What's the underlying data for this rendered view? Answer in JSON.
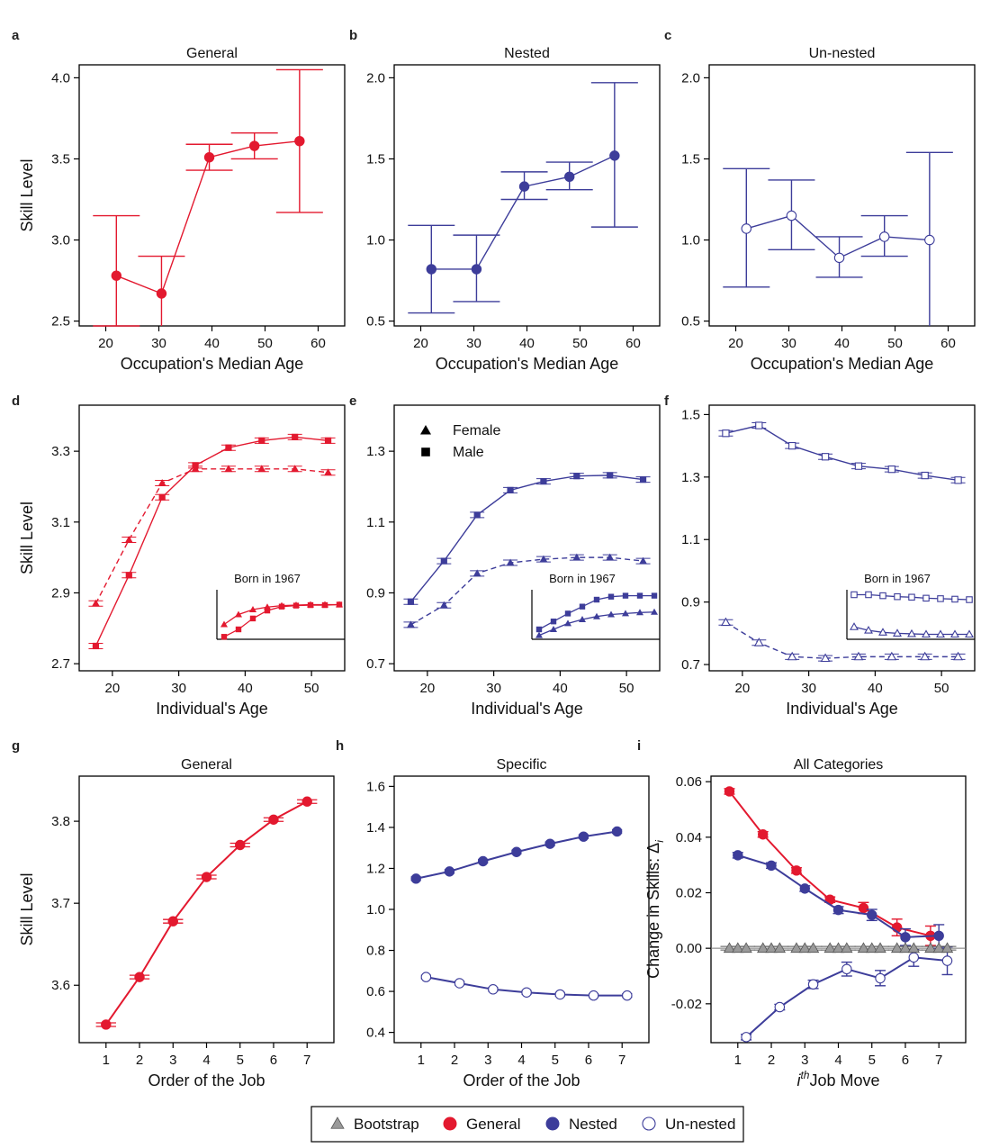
{
  "figure": {
    "legend": {
      "entries": [
        {
          "label": "Bootstrap",
          "symbol": "bootstrap"
        },
        {
          "label": "General",
          "symbol": "general"
        },
        {
          "label": "Nested",
          "symbol": "nested"
        },
        {
          "label": "Un-nested",
          "symbol": "unnested"
        }
      ]
    },
    "colors": {
      "general": "#e3192f",
      "nested": "#3d3d9a",
      "unnested": "#3d3d9a",
      "bootstrap": "#9a9a9a"
    }
  },
  "chart_data": [
    {
      "id": "a",
      "letter": "a",
      "type": "line",
      "title": "General",
      "xlabel": "Occupation's Median Age",
      "ylabel": "Skill Level",
      "xlim": [
        15,
        65
      ],
      "ylim": [
        2.47,
        4.08
      ],
      "xticks": [
        20,
        30,
        40,
        50,
        60
      ],
      "yticks": [
        2.5,
        3.0,
        3.5,
        4.0
      ],
      "ytick_labels": [
        "2.5",
        "3.0",
        "3.5",
        "4.0"
      ],
      "series": [
        {
          "name": "General",
          "marker": "circle-filled",
          "color": "#e3192f",
          "dash": false,
          "x": [
            22,
            30.5,
            39.5,
            48,
            56.5
          ],
          "y": [
            2.78,
            2.67,
            3.51,
            3.58,
            3.61
          ],
          "lo": [
            2.47,
            2.46,
            3.43,
            3.5,
            3.17
          ],
          "hi": [
            3.15,
            2.9,
            3.59,
            3.66,
            4.05
          ]
        }
      ]
    },
    {
      "id": "b",
      "letter": "b",
      "type": "line",
      "title": "Nested",
      "xlabel": "Occupation's Median Age",
      "ylabel": "",
      "xlim": [
        15,
        65
      ],
      "ylim": [
        0.47,
        2.08
      ],
      "xticks": [
        20,
        30,
        40,
        50,
        60
      ],
      "yticks": [
        0.5,
        1.0,
        1.5,
        2.0
      ],
      "ytick_labels": [
        "0.5",
        "1.0",
        "1.5",
        "2.0"
      ],
      "series": [
        {
          "name": "Nested",
          "marker": "circle-filled",
          "color": "#3d3d9a",
          "dash": false,
          "x": [
            22,
            30.5,
            39.5,
            48,
            56.5
          ],
          "y": [
            0.82,
            0.82,
            1.33,
            1.39,
            1.52
          ],
          "lo": [
            0.55,
            0.62,
            1.25,
            1.31,
            1.08
          ],
          "hi": [
            1.09,
            1.03,
            1.42,
            1.48,
            1.97
          ]
        }
      ]
    },
    {
      "id": "c",
      "letter": "c",
      "type": "line",
      "title": "Un-nested",
      "xlabel": "Occupation's Median Age",
      "ylabel": "",
      "xlim": [
        15,
        65
      ],
      "ylim": [
        0.47,
        2.08
      ],
      "xticks": [
        20,
        30,
        40,
        50,
        60
      ],
      "yticks": [
        0.5,
        1.0,
        1.5,
        2.0
      ],
      "ytick_labels": [
        "0.5",
        "1.0",
        "1.5",
        "2.0"
      ],
      "series": [
        {
          "name": "Un-nested",
          "marker": "circle-open",
          "color": "#3d3d9a",
          "dash": false,
          "x": [
            22,
            30.5,
            39.5,
            48,
            56.5
          ],
          "y": [
            1.07,
            1.15,
            0.89,
            1.02,
            1.0
          ],
          "lo": [
            0.71,
            0.94,
            0.77,
            0.9,
            0.46
          ],
          "hi": [
            1.44,
            1.37,
            1.02,
            1.15,
            1.54
          ]
        }
      ]
    },
    {
      "id": "d",
      "letter": "d",
      "type": "line",
      "title": "",
      "xlabel": "Individual's Age",
      "ylabel": "Skill Level",
      "xlim": [
        15,
        55
      ],
      "ylim": [
        2.68,
        3.43
      ],
      "xticks": [
        20,
        30,
        40,
        50
      ],
      "yticks": [
        2.7,
        2.9,
        3.1,
        3.3
      ],
      "ytick_labels": [
        "2.7",
        "2.9",
        "3.1",
        "3.3"
      ],
      "series": [
        {
          "name": "Male",
          "marker": "square-filled",
          "color": "#e3192f",
          "dash": false,
          "x": [
            17.5,
            22.5,
            27.5,
            32.5,
            37.5,
            42.5,
            47.5,
            52.5
          ],
          "y": [
            2.75,
            2.95,
            3.17,
            3.26,
            3.31,
            3.33,
            3.34,
            3.33
          ]
        },
        {
          "name": "Female",
          "marker": "triangle-filled",
          "color": "#e3192f",
          "dash": true,
          "x": [
            17.5,
            22.5,
            27.5,
            32.5,
            37.5,
            42.5,
            47.5,
            52.5
          ],
          "y": [
            2.87,
            3.05,
            3.21,
            3.25,
            3.25,
            3.25,
            3.25,
            3.24
          ]
        }
      ],
      "inset": {
        "title": "Born in 1967",
        "series": [
          {
            "name": "Male",
            "marker": "square-filled",
            "dash": false,
            "y": [
              0.05,
              0.2,
              0.42,
              0.58,
              0.66,
              0.68,
              0.69,
              0.69,
              0.7
            ]
          },
          {
            "name": "Female",
            "marker": "triangle-filled",
            "dash": false,
            "y": [
              0.3,
              0.5,
              0.6,
              0.65,
              0.68,
              0.69,
              0.7,
              0.7,
              0.7
            ]
          }
        ]
      }
    },
    {
      "id": "e",
      "letter": "e",
      "type": "line",
      "title": "",
      "xlabel": "Individual's Age",
      "ylabel": "",
      "xlim": [
        15,
        55
      ],
      "ylim": [
        0.68,
        1.43
      ],
      "xticks": [
        20,
        30,
        40,
        50
      ],
      "yticks": [
        0.7,
        0.9,
        1.1,
        1.3
      ],
      "ytick_labels": [
        "0.7",
        "0.9",
        "1.1",
        "1.3"
      ],
      "legend": [
        {
          "label": "Female",
          "marker": "triangle-filled"
        },
        {
          "label": "Male",
          "marker": "square-filled"
        }
      ],
      "series": [
        {
          "name": "Male",
          "marker": "square-filled",
          "color": "#3d3d9a",
          "dash": false,
          "x": [
            17.5,
            22.5,
            27.5,
            32.5,
            37.5,
            42.5,
            47.5,
            52.5
          ],
          "y": [
            0.875,
            0.99,
            1.12,
            1.19,
            1.215,
            1.23,
            1.232,
            1.22
          ]
        },
        {
          "name": "Female",
          "marker": "triangle-filled",
          "color": "#3d3d9a",
          "dash": true,
          "x": [
            17.5,
            22.5,
            27.5,
            32.5,
            37.5,
            42.5,
            47.5,
            52.5
          ],
          "y": [
            0.81,
            0.865,
            0.955,
            0.985,
            0.995,
            1.0,
            1.0,
            0.99
          ]
        }
      ],
      "inset": {
        "title": "Born in 1967",
        "series": [
          {
            "name": "Male",
            "marker": "square-filled",
            "dash": false,
            "y": [
              0.2,
              0.36,
              0.52,
              0.66,
              0.8,
              0.86,
              0.88,
              0.88,
              0.88
            ]
          },
          {
            "name": "Female",
            "marker": "triangle-filled",
            "dash": false,
            "y": [
              0.08,
              0.2,
              0.32,
              0.4,
              0.46,
              0.5,
              0.52,
              0.54,
              0.55
            ]
          }
        ]
      }
    },
    {
      "id": "f",
      "letter": "f",
      "type": "line",
      "title": "",
      "xlabel": "Individual's Age",
      "ylabel": "",
      "xlim": [
        15,
        55
      ],
      "ylim": [
        0.68,
        1.53
      ],
      "xticks": [
        20,
        30,
        40,
        50
      ],
      "yticks": [
        0.7,
        0.9,
        1.1,
        1.3,
        1.5
      ],
      "ytick_labels": [
        "0.7",
        "0.9",
        "1.1",
        "1.3",
        "1.5"
      ],
      "series": [
        {
          "name": "Male",
          "marker": "square-open",
          "color": "#3d3d9a",
          "dash": false,
          "x": [
            17.5,
            22.5,
            27.5,
            32.5,
            37.5,
            42.5,
            47.5,
            52.5
          ],
          "y": [
            1.44,
            1.465,
            1.4,
            1.365,
            1.335,
            1.325,
            1.305,
            1.29
          ]
        },
        {
          "name": "Female",
          "marker": "triangle-open",
          "color": "#3d3d9a",
          "dash": true,
          "x": [
            17.5,
            22.5,
            27.5,
            32.5,
            37.5,
            42.5,
            47.5,
            52.5
          ],
          "y": [
            0.835,
            0.77,
            0.725,
            0.72,
            0.725,
            0.725,
            0.725,
            0.725
          ]
        }
      ],
      "inset": {
        "title": "Born in 1967",
        "series": [
          {
            "name": "Male",
            "marker": "square-open",
            "dash": false,
            "y": [
              0.9,
              0.9,
              0.88,
              0.86,
              0.85,
              0.83,
              0.82,
              0.81,
              0.8
            ]
          },
          {
            "name": "Female",
            "marker": "triangle-open",
            "dash": false,
            "y": [
              0.25,
              0.18,
              0.14,
              0.12,
              0.11,
              0.1,
              0.1,
              0.1,
              0.1
            ]
          }
        ]
      }
    },
    {
      "id": "g",
      "letter": "g",
      "type": "line",
      "title": "General",
      "xlabel": "Order of the Job",
      "ylabel": "Skill Level",
      "xlim": [
        0.2,
        7.8
      ],
      "ylim": [
        3.53,
        3.855
      ],
      "xticks": [
        1,
        2,
        3,
        4,
        5,
        6,
        7
      ],
      "yticks": [
        3.6,
        3.7,
        3.8
      ],
      "ytick_labels": [
        "3.6",
        "3.7",
        "3.8"
      ],
      "series": [
        {
          "name": "General",
          "marker": "circle-filled",
          "color": "#e3192f",
          "dash": false,
          "xerr": 0.3,
          "x": [
            1,
            2,
            3,
            4,
            5,
            6,
            7
          ],
          "y": [
            3.552,
            3.61,
            3.678,
            3.732,
            3.771,
            3.802,
            3.824
          ]
        }
      ]
    },
    {
      "id": "h",
      "letter": "h",
      "type": "line",
      "title": "Specific",
      "xlabel": "Order of the Job",
      "ylabel": "",
      "xlim": [
        0.2,
        7.8
      ],
      "ylim": [
        0.35,
        1.65
      ],
      "xticks": [
        1,
        2,
        3,
        4,
        5,
        6,
        7
      ],
      "yticks": [
        0.4,
        0.6,
        0.8,
        1.0,
        1.2,
        1.4,
        1.6
      ],
      "ytick_labels": [
        "0.4",
        "0.6",
        "0.8",
        "1.0",
        "1.2",
        "1.4",
        "1.6"
      ],
      "series": [
        {
          "name": "Nested",
          "marker": "circle-filled",
          "color": "#3d3d9a",
          "dash": false,
          "xerr": 0.15,
          "x": [
            0.85,
            1.85,
            2.85,
            3.85,
            4.85,
            5.85,
            6.85
          ],
          "y": [
            1.15,
            1.185,
            1.235,
            1.28,
            1.32,
            1.355,
            1.38
          ]
        },
        {
          "name": "Un-nested",
          "marker": "circle-open",
          "color": "#3d3d9a",
          "dash": false,
          "xerr": 0.15,
          "x": [
            1.15,
            2.15,
            3.15,
            4.15,
            5.15,
            6.15,
            7.15
          ],
          "y": [
            0.67,
            0.64,
            0.61,
            0.595,
            0.585,
            0.58,
            0.58
          ]
        }
      ]
    },
    {
      "id": "i",
      "letter": "i",
      "type": "line",
      "title": "All Categories",
      "xlabel": "Job Move",
      "xlabel_prefix": "i",
      "xlabel_sup": "th",
      "ylabel": "Change in Skills: Δ",
      "ylabel_sub": "i",
      "xlim": [
        0.2,
        7.8
      ],
      "ylim": [
        -0.034,
        0.062
      ],
      "xticks": [
        1,
        2,
        3,
        4,
        5,
        6,
        7
      ],
      "yticks": [
        -0.02,
        0.0,
        0.02,
        0.04,
        0.06
      ],
      "ytick_labels": [
        "-0.02",
        "0.00",
        "0.02",
        "0.04",
        "0.06"
      ],
      "series": [
        {
          "name": "General",
          "marker": "circle-filled",
          "color": "#e3192f",
          "dash": false,
          "x": [
            0.75,
            1.75,
            2.75,
            3.75,
            4.75,
            5.75,
            6.75
          ],
          "y": [
            0.0565,
            0.041,
            0.028,
            0.0175,
            0.0145,
            0.0075,
            0.0045
          ],
          "lo": [
            0.0555,
            0.04,
            0.027,
            0.0165,
            0.0125,
            0.0045,
            0.001
          ],
          "hi": [
            0.0575,
            0.042,
            0.029,
            0.0185,
            0.0165,
            0.0105,
            0.008
          ]
        },
        {
          "name": "Nested",
          "marker": "circle-filled",
          "color": "#3d3d9a",
          "dash": false,
          "x": [
            1.0,
            2.0,
            3.0,
            4.0,
            5.0,
            6.0,
            7.0
          ],
          "y": [
            0.0335,
            0.0298,
            0.0215,
            0.0138,
            0.012,
            0.004,
            0.0045
          ],
          "lo": [
            0.0325,
            0.0288,
            0.0205,
            0.0125,
            0.01,
            0.001,
            0.0
          ],
          "hi": [
            0.0345,
            0.0308,
            0.0225,
            0.015,
            0.014,
            0.007,
            0.0085
          ]
        },
        {
          "name": "Un-nested",
          "marker": "circle-open",
          "color": "#3d3d9a",
          "dash": false,
          "x": [
            1.25,
            2.25,
            3.25,
            4.25,
            5.25,
            6.25,
            7.25
          ],
          "y": [
            -0.032,
            -0.0212,
            -0.013,
            -0.0075,
            -0.0108,
            -0.0033,
            -0.0045
          ],
          "lo": [
            -0.033,
            -0.0222,
            -0.0145,
            -0.01,
            -0.0135,
            -0.0065,
            -0.0095
          ],
          "hi": [
            -0.031,
            -0.0202,
            -0.0115,
            -0.005,
            -0.008,
            -0.0005,
            0.0005
          ]
        },
        {
          "name": "Bootstrap",
          "marker": "triangle-gray",
          "color": "#9a9a9a",
          "dash": false,
          "bootstrap": true,
          "x": [
            0.75,
            1.0,
            1.25,
            1.75,
            2.0,
            2.25,
            2.75,
            3.0,
            3.25,
            3.75,
            4.0,
            4.25,
            4.75,
            5.0,
            5.25,
            5.75,
            6.0,
            6.25,
            6.75,
            7.0,
            7.25
          ],
          "y": [
            0,
            0,
            0,
            0,
            0,
            0,
            0,
            0,
            0,
            0,
            0,
            0,
            0,
            0,
            0,
            0,
            0,
            0,
            0,
            0,
            0
          ]
        }
      ]
    }
  ]
}
